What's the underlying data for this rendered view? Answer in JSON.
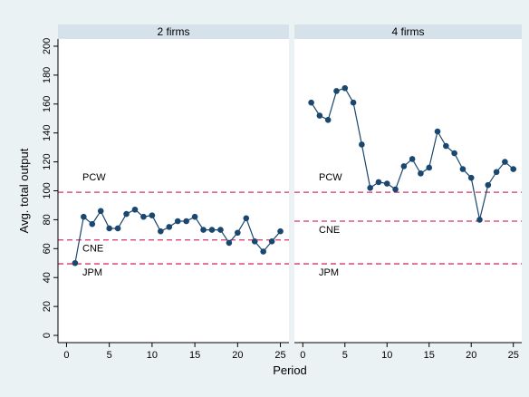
{
  "chart_data": {
    "type": "line",
    "ylabel": "Avg. total output",
    "xlabel": "Period",
    "x_ticks": [
      0,
      5,
      10,
      15,
      20,
      25
    ],
    "y_ticks": [
      0,
      20,
      40,
      60,
      80,
      100,
      120,
      140,
      160,
      180,
      200
    ],
    "xlim": [
      -1,
      26
    ],
    "ylim": [
      -5,
      205
    ],
    "grid": false,
    "reference_lines": [
      {
        "label": "PCW",
        "value": 99
      },
      {
        "label": "CNE",
        "value": 66
      },
      {
        "label": "JPM",
        "value": 49.5
      }
    ],
    "panels": [
      {
        "title": "2 firms",
        "x": [
          1,
          2,
          3,
          4,
          5,
          6,
          7,
          8,
          9,
          10,
          11,
          12,
          13,
          14,
          15,
          16,
          17,
          18,
          19,
          20,
          21,
          22,
          23,
          24,
          25
        ],
        "values": [
          50,
          82,
          77,
          86,
          74,
          74,
          84,
          87,
          82,
          83,
          72,
          75,
          79,
          79,
          82,
          73,
          73,
          73,
          64,
          71,
          81,
          65,
          58,
          65,
          72
        ],
        "reference_lines": [
          {
            "label": "PCW",
            "value": 99
          },
          {
            "label": "CNE",
            "value": 66
          },
          {
            "label": "JPM",
            "value": 49.5
          }
        ]
      },
      {
        "title": "4 firms",
        "x": [
          1,
          2,
          3,
          4,
          5,
          6,
          7,
          8,
          9,
          10,
          11,
          12,
          13,
          14,
          15,
          16,
          17,
          18,
          19,
          20,
          21,
          22,
          23,
          24,
          25
        ],
        "values": [
          161,
          152,
          149,
          169,
          171,
          161,
          132,
          102,
          106,
          105,
          101,
          117,
          122,
          112,
          116,
          141,
          131,
          126,
          115,
          109,
          80,
          104,
          113,
          120,
          115
        ],
        "reference_lines": [
          {
            "label": "PCW",
            "value": 99
          },
          {
            "label": "CNE",
            "value": 79
          },
          {
            "label": "JPM",
            "value": 49.5
          }
        ]
      }
    ]
  },
  "colors": {
    "background": "#eaf2f3",
    "panel_bg": "#ffffff",
    "strip_bg": "#d5e2ea",
    "line": "#1a476f",
    "reference": "#d6336c",
    "axis": "#000000"
  }
}
